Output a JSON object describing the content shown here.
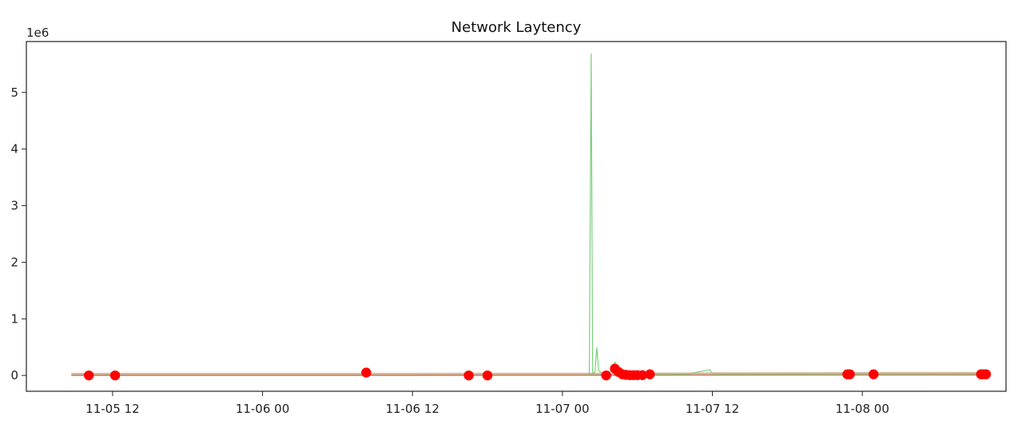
{
  "chart_data": {
    "type": "line",
    "title": "Network Laytency",
    "xlabel": "",
    "ylabel": "",
    "y_offset_label": "1e6",
    "x_tick_labels": [
      "11-05 12",
      "11-06 00",
      "11-06 12",
      "11-07 00",
      "11-07 12",
      "11-08 00"
    ],
    "x_tick_hours": [
      12,
      24,
      36,
      48,
      60,
      72
    ],
    "y_ticks": [
      0,
      1,
      2,
      3,
      4,
      5
    ],
    "y_scale": 1000000,
    "xlim_hours": [
      5.1,
      83.5
    ],
    "ylim": [
      -280000,
      5900000
    ],
    "grid": false,
    "colors": {
      "latency_band": "#d9b8a3",
      "latency_line": "#c08a66",
      "spike_line": "#7ccf7c",
      "anomaly_marker": "#ff0000",
      "axes": "#222222"
    },
    "series": [
      {
        "kind": "band",
        "points": [
          [
            8.7,
            18000
          ],
          [
            30,
            18000
          ],
          [
            50,
            20000
          ],
          [
            55,
            22000
          ],
          [
            60,
            26000
          ],
          [
            75,
            32000
          ],
          [
            82.1,
            34000
          ]
        ]
      },
      {
        "kind": "line",
        "points": [
          [
            8.7,
            5000
          ],
          [
            30,
            5000
          ],
          [
            50,
            6000
          ],
          [
            82.1,
            9000
          ]
        ]
      },
      {
        "kind": "spike",
        "points": [
          [
            50.0,
            20000
          ],
          [
            50.15,
            20000
          ],
          [
            50.3,
            5680000
          ],
          [
            50.42,
            30000
          ],
          [
            50.6,
            60000
          ],
          [
            50.75,
            490000
          ],
          [
            50.9,
            80000
          ],
          [
            51.2,
            40000
          ],
          [
            51.6,
            50000
          ],
          [
            52.0,
            90000
          ],
          [
            52.2,
            240000
          ],
          [
            52.4,
            40000
          ],
          [
            55.0,
            30000
          ],
          [
            58.0,
            25000
          ],
          [
            59.8,
            100000
          ],
          [
            60.0,
            30000
          ],
          [
            65,
            28000
          ],
          [
            72,
            30000
          ],
          [
            82.1,
            32000
          ]
        ]
      }
    ],
    "anomalies_hours": [
      10.1,
      12.2,
      32.3,
      40.5,
      42.0,
      51.5,
      52.2,
      52.5,
      52.8,
      53.1,
      53.4,
      53.7,
      54.0,
      54.4,
      55.0,
      70.8,
      71.0,
      72.9,
      81.5,
      81.7,
      81.9
    ],
    "anomalies_values": [
      0,
      0,
      50000,
      0,
      0,
      0,
      120000,
      60000,
      20000,
      10000,
      5000,
      5000,
      5000,
      5000,
      20000,
      20000,
      20000,
      20000,
      20000,
      20000,
      20000
    ]
  }
}
